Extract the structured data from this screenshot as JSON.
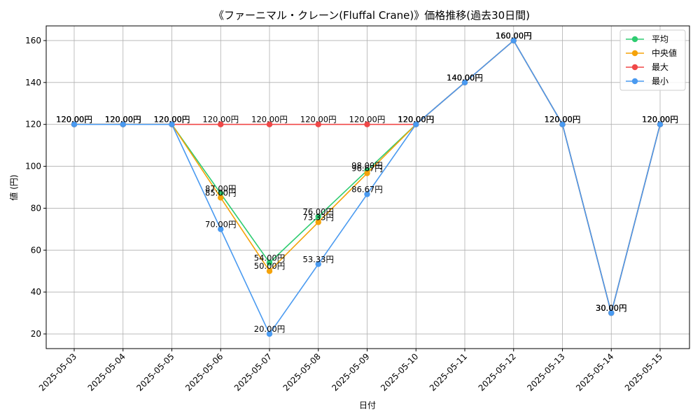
{
  "chart_data": {
    "type": "line",
    "title": "《ファーニマル・クレーン(Fluffal Crane)》価格推移(過去30日間)",
    "xlabel": "日付",
    "ylabel": "値 (円)",
    "ylim": [
      13,
      167
    ],
    "yticks": [
      20,
      40,
      60,
      80,
      100,
      120,
      140,
      160
    ],
    "grid": true,
    "legend_position": "top-right",
    "categories": [
      "2025-05-03",
      "2025-05-04",
      "2025-05-05",
      "2025-05-06",
      "2025-05-07",
      "2025-05-08",
      "2025-05-09",
      "2025-05-10",
      "2025-05-11",
      "2025-05-12",
      "2025-05-13",
      "2025-05-14",
      "2025-05-15"
    ],
    "series": [
      {
        "name": "平均",
        "color": "#2ecc71",
        "values": [
          120,
          120,
          120,
          87,
          54,
          76,
          98,
          120,
          140,
          160,
          120,
          30,
          120
        ],
        "labels": [
          "120.00円",
          "120.00円",
          "120.00円",
          "87.00円",
          "54.00円",
          "76.00円",
          "98.00円",
          "120.00円",
          "140.00円",
          "160.00円",
          "120.00円",
          "30.00円",
          "120.00円"
        ]
      },
      {
        "name": "中央値",
        "color": "#f5a30a",
        "values": [
          120,
          120,
          120,
          85,
          50,
          73.33,
          96.67,
          120,
          140,
          160,
          120,
          30,
          120
        ],
        "labels": [
          "120.00円",
          "120.00円",
          "120.00円",
          "85.00円",
          "50.00円",
          "73.33円",
          "96.67円",
          "120.00円",
          "140.00円",
          "160.00円",
          "120.00円",
          "30.00円",
          "120.00円"
        ]
      },
      {
        "name": "最大",
        "color": "#f04848",
        "values": [
          120,
          120,
          120,
          120,
          120,
          120,
          120,
          120,
          140,
          160,
          120,
          30,
          120
        ],
        "labels": [
          "120.00円",
          "120.00円",
          "120.00円",
          "120.00円",
          "120.00円",
          "120.00円",
          "120.00円",
          "120.00円",
          "140.00円",
          "160.00円",
          "120.00円",
          "30.00円",
          "120.00円"
        ]
      },
      {
        "name": "最小",
        "color": "#4a9af0",
        "values": [
          120,
          120,
          120,
          70,
          20,
          53.33,
          86.67,
          120,
          140,
          160,
          120,
          30,
          120
        ],
        "labels": [
          "120.00円",
          "120.00円",
          "120.00円",
          "70.00円",
          "20.00円",
          "53.33円",
          "86.67円",
          "120.00円",
          "140.00円",
          "160.00円",
          "120.00円",
          "30.00円",
          "120.00円"
        ]
      }
    ]
  }
}
